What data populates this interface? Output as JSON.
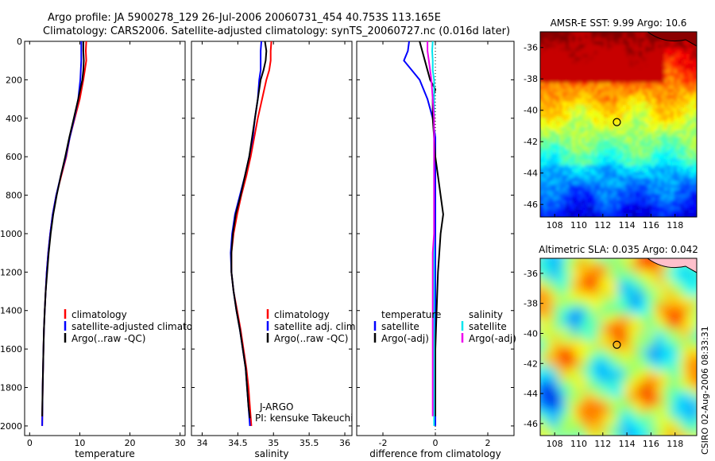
{
  "title": {
    "line1": "Argo profile: JA 5900278_129 26-Jul-2006 20060731_454 40.753S 113.165E",
    "line2": "Climatology: CARS2006. Satellite-adjusted climatology: synTS_20060727.nc (0.016d later)"
  },
  "side_label": "CSIRO 02-Aug-2006 08:33:31",
  "colors": {
    "climatology": "#ff0000",
    "satellite": "#0000ff",
    "argo": "#000000",
    "sat_salinity": "#00e5ee",
    "argo_salinity": "#ee00ee"
  },
  "chart_data": [
    {
      "id": "temperature",
      "type": "line",
      "xlabel": "temperature",
      "ylabel": "",
      "xlim": [
        -1,
        31
      ],
      "ylim": [
        2050,
        0
      ],
      "xticks": [
        0,
        10,
        20,
        30
      ],
      "yticks": [
        0,
        200,
        400,
        600,
        800,
        1000,
        1200,
        1400,
        1600,
        1800,
        2000
      ],
      "legend": {
        "placement": "lower-right",
        "entries": [
          {
            "label": "climatology",
            "color": "#ff0000"
          },
          {
            "label": "satellite-adjusted climatolog",
            "color": "#0000ff"
          },
          {
            "label": "Argo(..raw -QC)",
            "color": "#000000"
          }
        ]
      },
      "series": [
        {
          "name": "climatology",
          "color": "#ff0000",
          "points": [
            [
              11.3,
              0
            ],
            [
              11.2,
              50
            ],
            [
              11.3,
              100
            ],
            [
              11.0,
              150
            ],
            [
              10.7,
              200
            ],
            [
              10.0,
              300
            ],
            [
              9.0,
              400
            ],
            [
              8.0,
              500
            ],
            [
              7.3,
              600
            ],
            [
              6.3,
              700
            ],
            [
              5.3,
              800
            ],
            [
              4.6,
              900
            ],
            [
              4.1,
              1000
            ],
            [
              3.7,
              1100
            ],
            [
              3.4,
              1200
            ],
            [
              3.2,
              1300
            ],
            [
              3.0,
              1400
            ],
            [
              2.85,
              1500
            ],
            [
              2.75,
              1600
            ],
            [
              2.6,
              1800
            ],
            [
              2.5,
              2000
            ]
          ]
        },
        {
          "name": "satellite-adjusted climatology",
          "color": "#0000ff",
          "points": [
            [
              10.3,
              0
            ],
            [
              10.3,
              50
            ],
            [
              10.3,
              100
            ],
            [
              10.2,
              150
            ],
            [
              10.1,
              200
            ],
            [
              9.7,
              300
            ],
            [
              8.9,
              400
            ],
            [
              8.0,
              500
            ],
            [
              7.2,
              600
            ],
            [
              6.2,
              700
            ],
            [
              5.3,
              800
            ],
            [
              4.6,
              900
            ],
            [
              4.1,
              1000
            ],
            [
              3.7,
              1100
            ],
            [
              3.4,
              1200
            ],
            [
              3.2,
              1300
            ],
            [
              3.0,
              1400
            ],
            [
              2.85,
              1500
            ],
            [
              2.75,
              1600
            ],
            [
              2.6,
              1800
            ],
            [
              2.5,
              2000
            ]
          ]
        },
        {
          "name": "Argo(..raw -QC)",
          "color": "#000000",
          "points": [
            [
              10.7,
              0
            ],
            [
              10.7,
              50
            ],
            [
              10.8,
              100
            ],
            [
              10.7,
              150
            ],
            [
              10.5,
              200
            ],
            [
              9.7,
              300
            ],
            [
              8.8,
              400
            ],
            [
              7.9,
              500
            ],
            [
              7.1,
              600
            ],
            [
              6.2,
              700
            ],
            [
              5.4,
              800
            ],
            [
              4.7,
              900
            ],
            [
              4.2,
              1000
            ],
            [
              3.8,
              1100
            ],
            [
              3.5,
              1200
            ],
            [
              3.2,
              1300
            ],
            [
              3.0,
              1400
            ],
            [
              2.85,
              1500
            ],
            [
              2.75,
              1600
            ],
            [
              2.6,
              1800
            ],
            [
              2.5,
              1950
            ]
          ]
        }
      ]
    },
    {
      "id": "salinity",
      "type": "line",
      "xlabel": "salinity",
      "ylabel": "",
      "xlim": [
        33.85,
        36.1
      ],
      "ylim": [
        2050,
        0
      ],
      "xticks": [
        34,
        34.5,
        35,
        35.5,
        36
      ],
      "xticklabels": [
        "34",
        "34.5",
        "35",
        "35.5",
        "36"
      ],
      "legend": {
        "placement": "lower-right",
        "entries": [
          {
            "label": "climatology",
            "color": "#ff0000"
          },
          {
            "label": "satellite adj. clim.",
            "color": "#0000ff"
          },
          {
            "label": "Argo(..raw -QC)",
            "color": "#000000"
          }
        ]
      },
      "annotation": {
        "line1": "J-ARGO",
        "line2": "PI: kensuke Takeuchi"
      },
      "series": [
        {
          "name": "climatology",
          "color": "#ff0000",
          "points": [
            [
              34.97,
              0
            ],
            [
              34.96,
              50
            ],
            [
              34.96,
              100
            ],
            [
              34.94,
              150
            ],
            [
              34.9,
              200
            ],
            [
              34.84,
              300
            ],
            [
              34.78,
              400
            ],
            [
              34.73,
              500
            ],
            [
              34.68,
              600
            ],
            [
              34.62,
              700
            ],
            [
              34.55,
              800
            ],
            [
              34.49,
              900
            ],
            [
              34.44,
              1000
            ],
            [
              34.41,
              1100
            ],
            [
              34.41,
              1200
            ],
            [
              34.44,
              1300
            ],
            [
              34.49,
              1400
            ],
            [
              34.54,
              1500
            ],
            [
              34.58,
              1600
            ],
            [
              34.62,
              1700
            ],
            [
              34.65,
              1800
            ],
            [
              34.67,
              1900
            ],
            [
              34.69,
              2000
            ]
          ]
        },
        {
          "name": "satellite adj. clim.",
          "color": "#0000ff",
          "points": [
            [
              34.83,
              0
            ],
            [
              34.82,
              50
            ],
            [
              34.82,
              100
            ],
            [
              34.82,
              150
            ],
            [
              34.8,
              200
            ],
            [
              34.78,
              300
            ],
            [
              34.74,
              400
            ],
            [
              34.71,
              500
            ],
            [
              34.66,
              600
            ],
            [
              34.6,
              700
            ],
            [
              34.53,
              800
            ],
            [
              34.46,
              900
            ],
            [
              34.42,
              1000
            ],
            [
              34.4,
              1100
            ],
            [
              34.41,
              1200
            ],
            [
              34.44,
              1300
            ],
            [
              34.48,
              1400
            ],
            [
              34.53,
              1500
            ],
            [
              34.57,
              1600
            ],
            [
              34.61,
              1700
            ],
            [
              34.63,
              1800
            ],
            [
              34.65,
              1900
            ],
            [
              34.67,
              2000
            ]
          ]
        },
        {
          "name": "Argo(..raw -QC)",
          "color": "#000000",
          "points": [
            [
              34.88,
              0
            ],
            [
              34.9,
              50
            ],
            [
              34.89,
              100
            ],
            [
              34.86,
              150
            ],
            [
              34.82,
              200
            ],
            [
              34.78,
              300
            ],
            [
              34.74,
              400
            ],
            [
              34.7,
              500
            ],
            [
              34.66,
              600
            ],
            [
              34.6,
              700
            ],
            [
              34.54,
              800
            ],
            [
              34.47,
              900
            ],
            [
              34.43,
              1000
            ],
            [
              34.41,
              1100
            ],
            [
              34.41,
              1200
            ],
            [
              34.44,
              1300
            ],
            [
              34.48,
              1400
            ],
            [
              34.53,
              1500
            ],
            [
              34.57,
              1600
            ],
            [
              34.61,
              1700
            ],
            [
              34.63,
              1800
            ],
            [
              34.65,
              1900
            ],
            [
              34.67,
              1960
            ]
          ]
        }
      ]
    },
    {
      "id": "difference",
      "type": "line",
      "xlabel": "difference from climatology",
      "ylabel": "",
      "xlim": [
        -3,
        3
      ],
      "ylim": [
        2050,
        0
      ],
      "xticks": [
        -2,
        0,
        2
      ],
      "legend": {
        "placement": "lower",
        "columns": [
          {
            "header": "temperature",
            "entries": [
              {
                "label": "satellite",
                "color": "#0000ff"
              },
              {
                "label": "Argo(-adj)",
                "color": "#000000"
              }
            ]
          },
          {
            "header": "salinity",
            "entries": [
              {
                "label": "satellite",
                "color": "#00e5ee"
              },
              {
                "label": "Argo(-adj)",
                "color": "#ee00ee"
              }
            ]
          }
        ]
      },
      "series": [
        {
          "name": "temperature satellite",
          "color": "#0000ff",
          "points": [
            [
              -1.0,
              0
            ],
            [
              -1.05,
              50
            ],
            [
              -1.2,
              100
            ],
            [
              -0.9,
              150
            ],
            [
              -0.6,
              200
            ],
            [
              -0.3,
              300
            ],
            [
              -0.1,
              400
            ],
            [
              0,
              500
            ],
            [
              0,
              700
            ],
            [
              0,
              1000
            ],
            [
              0,
              1500
            ],
            [
              0,
              2000
            ]
          ]
        },
        {
          "name": "temperature Argo(-adj)",
          "color": "#000000",
          "points": [
            [
              -0.6,
              0
            ],
            [
              -0.5,
              50
            ],
            [
              -0.4,
              100
            ],
            [
              -0.3,
              150
            ],
            [
              -0.2,
              200
            ],
            [
              0,
              250
            ],
            [
              -0.1,
              300
            ],
            [
              -0.1,
              400
            ],
            [
              -0.05,
              500
            ],
            [
              0,
              600
            ],
            [
              0.1,
              700
            ],
            [
              0.2,
              800
            ],
            [
              0.3,
              900
            ],
            [
              0.2,
              1000
            ],
            [
              0.15,
              1100
            ],
            [
              0.1,
              1200
            ],
            [
              0.05,
              1400
            ],
            [
              0,
              1600
            ],
            [
              0,
              1800
            ],
            [
              0,
              1950
            ]
          ]
        },
        {
          "name": "salinity satellite",
          "color": "#00e5ee",
          "points": [
            [
              -0.1,
              0
            ],
            [
              -0.12,
              50
            ],
            [
              -0.1,
              100
            ],
            [
              -0.1,
              150
            ],
            [
              -0.05,
              200
            ],
            [
              -0.05,
              300
            ],
            [
              -0.05,
              400
            ],
            [
              -0.05,
              500
            ],
            [
              -0.05,
              700
            ],
            [
              -0.05,
              1000
            ],
            [
              -0.05,
              1500
            ],
            [
              -0.05,
              2000
            ]
          ]
        },
        {
          "name": "salinity Argo(-adj)",
          "color": "#ee00ee",
          "points": [
            [
              -0.3,
              0
            ],
            [
              -0.3,
              50
            ],
            [
              -0.25,
              100
            ],
            [
              -0.2,
              150
            ],
            [
              -0.15,
              200
            ],
            [
              -0.1,
              300
            ],
            [
              -0.05,
              400
            ],
            [
              -0.05,
              500
            ],
            [
              -0.05,
              700
            ],
            [
              -0.05,
              900
            ],
            [
              -0.05,
              1000
            ],
            [
              -0.1,
              1100
            ],
            [
              -0.1,
              1200
            ],
            [
              -0.1,
              1300
            ],
            [
              -0.1,
              1400
            ],
            [
              -0.1,
              1600
            ],
            [
              -0.1,
              1800
            ],
            [
              -0.1,
              1950
            ]
          ]
        }
      ]
    },
    {
      "id": "amsre-sst",
      "type": "heatmap",
      "title": "AMSR-E SST: 9.99 Argo: 10.6",
      "xlim": [
        106.8,
        119.8
      ],
      "ylim": [
        -46.8,
        -35
      ],
      "xticks": [
        108,
        110,
        112,
        114,
        116,
        118
      ],
      "yticks": [
        -36,
        -38,
        -40,
        -42,
        -44,
        -46
      ],
      "marker": {
        "lon": 113.165,
        "lat": -40.753
      },
      "zrange": [
        8,
        16
      ]
    },
    {
      "id": "altimetric-sla",
      "type": "heatmap",
      "title": "Altimetric SLA: 0.035 Argo: 0.042",
      "xlim": [
        106.8,
        119.8
      ],
      "ylim": [
        -46.8,
        -35
      ],
      "xticks": [
        108,
        110,
        112,
        114,
        116,
        118
      ],
      "yticks": [
        -36,
        -38,
        -40,
        -42,
        -44,
        -46
      ],
      "marker": {
        "lon": 113.165,
        "lat": -40.753
      },
      "zrange": [
        -0.2,
        0.2
      ]
    }
  ]
}
